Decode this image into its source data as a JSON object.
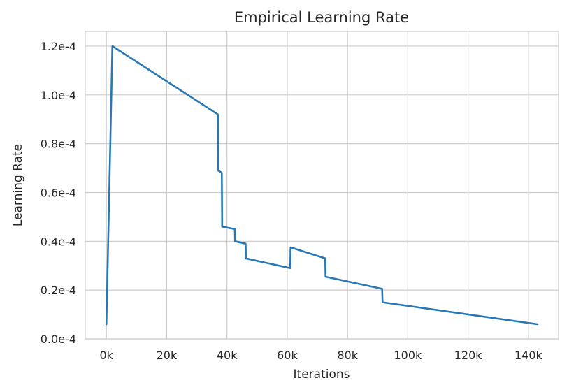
{
  "chart_data": {
    "type": "line",
    "title": "Empirical Learning Rate",
    "xlabel": "Iterations",
    "ylabel": "Learning Rate",
    "xlim": [
      -7000,
      150000
    ],
    "ylim": [
      0,
      0.000126
    ],
    "x_ticks": [
      {
        "value": 0,
        "label": "0k"
      },
      {
        "value": 20000,
        "label": "20k"
      },
      {
        "value": 40000,
        "label": "40k"
      },
      {
        "value": 60000,
        "label": "60k"
      },
      {
        "value": 80000,
        "label": "80k"
      },
      {
        "value": 100000,
        "label": "100k"
      },
      {
        "value": 120000,
        "label": "120k"
      },
      {
        "value": 140000,
        "label": "140k"
      }
    ],
    "y_ticks": [
      {
        "value": 0,
        "label": "0.0e-4"
      },
      {
        "value": 2e-05,
        "label": "0.2e-4"
      },
      {
        "value": 4e-05,
        "label": "0.4e-4"
      },
      {
        "value": 6e-05,
        "label": "0.6e-4"
      },
      {
        "value": 8e-05,
        "label": "0.8e-4"
      },
      {
        "value": 0.0001,
        "label": "1.0e-4"
      },
      {
        "value": 0.00012,
        "label": "1.2e-4"
      }
    ],
    "grid": true,
    "series": [
      {
        "color": "#2878b5",
        "x": [
          0,
          2000,
          37000,
          37100,
          38300,
          38400,
          42600,
          42700,
          46200,
          46300,
          61000,
          61100,
          72600,
          72700,
          91500,
          91600,
          143000
        ],
        "y": [
          6e-06,
          0.00012,
          9.2e-05,
          6.9e-05,
          6.8e-05,
          4.6e-05,
          4.5e-05,
          4e-05,
          3.9e-05,
          3.3e-05,
          2.9e-05,
          3.75e-05,
          3.3e-05,
          2.55e-05,
          2.05e-05,
          1.5e-05,
          6e-06
        ]
      }
    ]
  }
}
